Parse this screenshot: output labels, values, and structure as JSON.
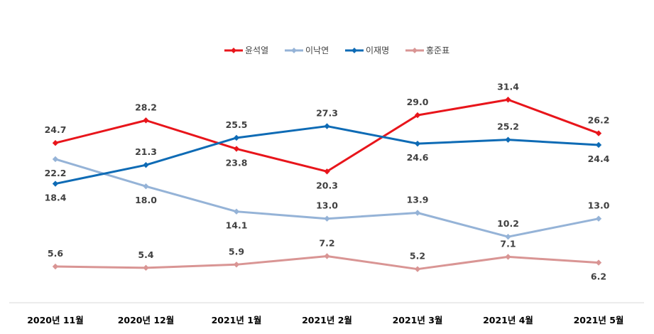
{
  "chart_data": {
    "type": "line",
    "categories": [
      "2020년 11월",
      "2020년 12월",
      "2021년 1월",
      "2021년 2월",
      "2021년 3월",
      "2021년 4월",
      "2021년 5월"
    ],
    "series": [
      {
        "name": "윤석열",
        "color": "#E8151B",
        "values": [
          24.7,
          28.2,
          23.8,
          20.3,
          29.0,
          31.4,
          26.2
        ],
        "label_pos": [
          "above",
          "above",
          "below",
          "below",
          "above",
          "above",
          "above"
        ]
      },
      {
        "name": "이낙연",
        "color": "#95B3D7",
        "values": [
          22.2,
          18.0,
          14.1,
          13.0,
          13.9,
          10.2,
          13.0
        ],
        "label_pos": [
          "below",
          "below",
          "below",
          "above",
          "above",
          "above",
          "above"
        ]
      },
      {
        "name": "이재명",
        "color": "#0E6BB5",
        "values": [
          18.4,
          21.3,
          25.5,
          27.3,
          24.6,
          25.2,
          24.4
        ],
        "label_pos": [
          "below",
          "above",
          "above",
          "above",
          "below",
          "above",
          "below"
        ]
      },
      {
        "name": "홍준표",
        "color": "#D99594",
        "values": [
          5.6,
          5.4,
          5.9,
          7.2,
          5.2,
          7.1,
          6.2
        ],
        "label_pos": [
          "above",
          "above",
          "above",
          "above",
          "above",
          "above",
          "below"
        ]
      }
    ],
    "legend_position": "top-center",
    "grid": false,
    "ylim": [
      0,
      38
    ]
  }
}
